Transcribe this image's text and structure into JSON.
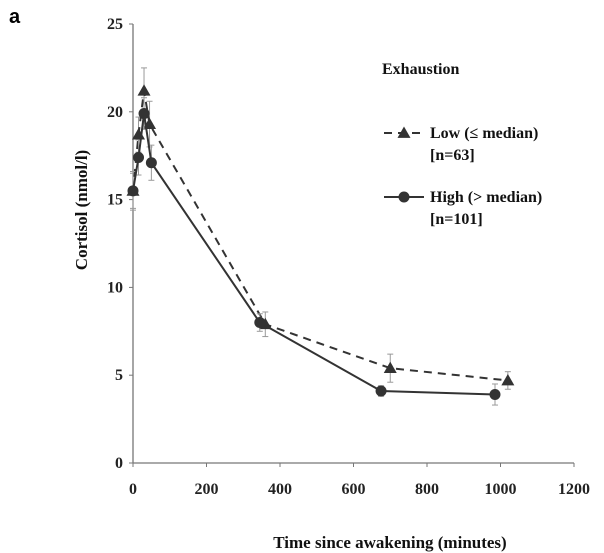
{
  "panel_label": "a",
  "chart_data": {
    "type": "line",
    "title": "",
    "xlabel": "Time since awakening (minutes)",
    "ylabel": "Cortisol (nmol/l)",
    "xlim": [
      0,
      1200
    ],
    "ylim": [
      0,
      25
    ],
    "xticks": [
      "0",
      "200",
      "400",
      "600",
      "800",
      "1000",
      "1200"
    ],
    "yticks": [
      "0",
      "5",
      "10",
      "15",
      "20",
      "25"
    ],
    "legend_title": "Exhaustion",
    "legend_position": "top-right",
    "grid": false,
    "series": [
      {
        "name": "Low (≤ median)",
        "name_line2": "[n=63]",
        "style": "dashed",
        "marker": "triangle",
        "color": "#333333",
        "x": [
          0,
          15,
          30,
          45,
          360,
          700,
          1020
        ],
        "y": [
          15.5,
          18.7,
          21.2,
          19.3,
          7.9,
          5.4,
          4.7
        ],
        "err": [
          1.0,
          1.0,
          1.3,
          1.3,
          0.7,
          0.8,
          0.5
        ]
      },
      {
        "name": "High (> median)",
        "name_line2": "[n=101]",
        "style": "solid",
        "marker": "circle",
        "color": "#333333",
        "x": [
          0,
          15,
          30,
          50,
          345,
          675,
          985
        ],
        "y": [
          15.5,
          17.4,
          19.9,
          17.1,
          8.0,
          4.1,
          3.9
        ],
        "err": [
          1.1,
          1.0,
          0.9,
          1.0,
          0.5,
          0.3,
          0.6
        ]
      }
    ]
  }
}
